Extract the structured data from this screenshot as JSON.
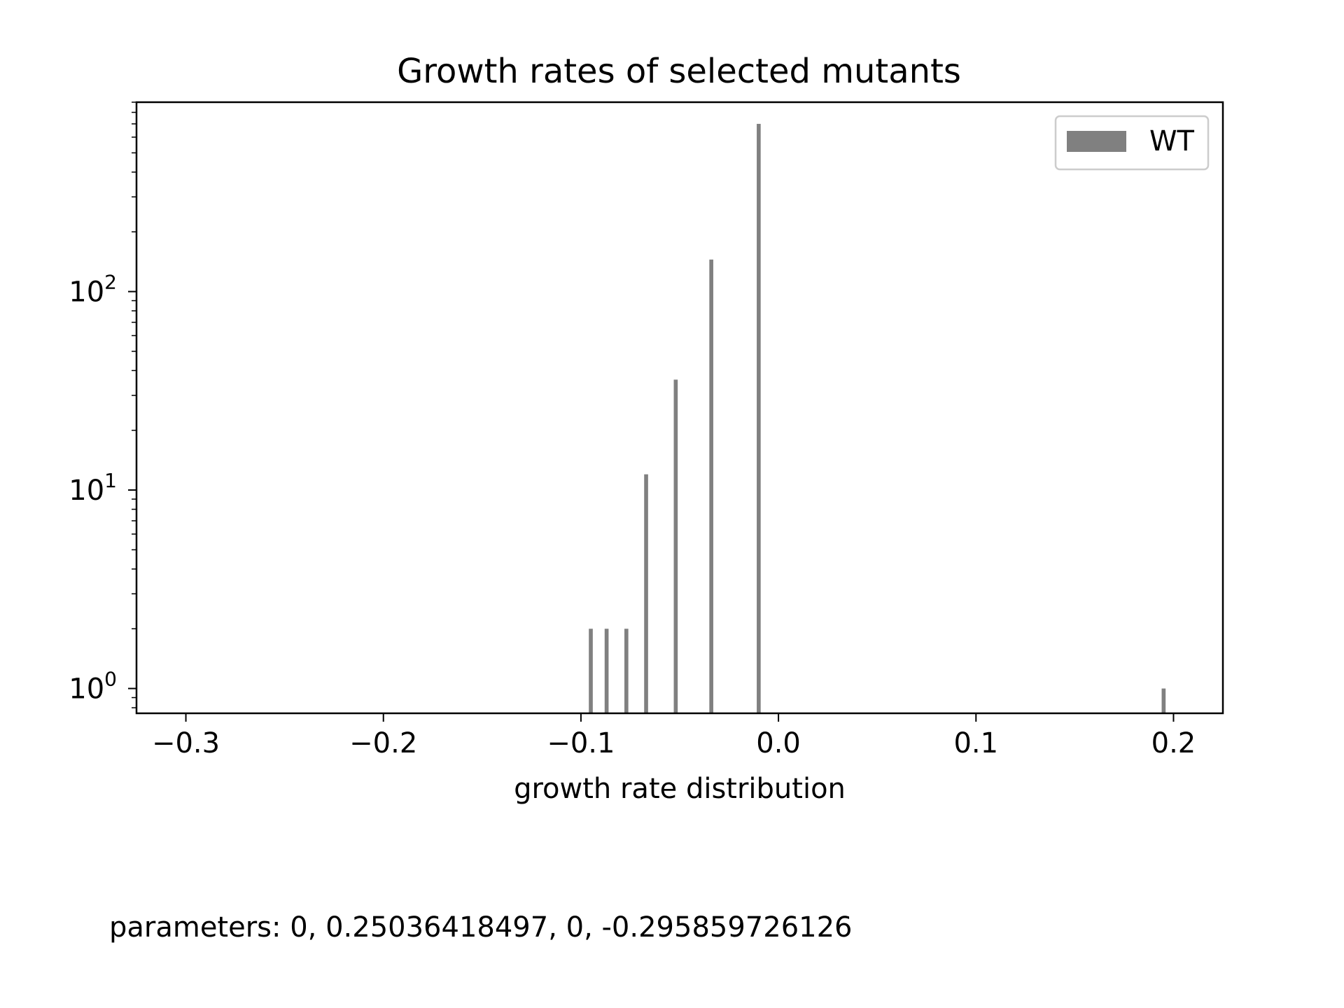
{
  "chart_data": {
    "type": "bar",
    "title": "Growth rates of selected mutants",
    "xlabel": "growth rate distribution",
    "ylabel": "",
    "yscale": "log",
    "xlim": [
      -0.325,
      0.225
    ],
    "ylim": [
      0.75,
      900
    ],
    "x_ticks": [
      -0.3,
      -0.2,
      -0.1,
      0.0,
      0.1,
      0.2
    ],
    "x_tick_labels": [
      "−0.3",
      "−0.2",
      "−0.1",
      "0.0",
      "0.1",
      "0.2"
    ],
    "y_ticks": [
      {
        "value": 1,
        "base": "10",
        "exp": "0"
      },
      {
        "value": 10,
        "base": "10",
        "exp": "1"
      },
      {
        "value": 100,
        "base": "10",
        "exp": "2"
      }
    ],
    "grid": false,
    "legend_position": "top-right",
    "series": [
      {
        "name": "WT",
        "color": "#808080",
        "bar_width": 0.002,
        "points": [
          {
            "x": -0.095,
            "y": 2
          },
          {
            "x": -0.087,
            "y": 2
          },
          {
            "x": -0.077,
            "y": 2
          },
          {
            "x": -0.067,
            "y": 12
          },
          {
            "x": -0.052,
            "y": 36
          },
          {
            "x": -0.034,
            "y": 145
          },
          {
            "x": -0.01,
            "y": 700
          },
          {
            "x": 0.195,
            "y": 1
          }
        ]
      }
    ]
  },
  "footer": {
    "parameters_text": "parameters: 0, 0.25036418497, 0, -0.295859726126"
  }
}
